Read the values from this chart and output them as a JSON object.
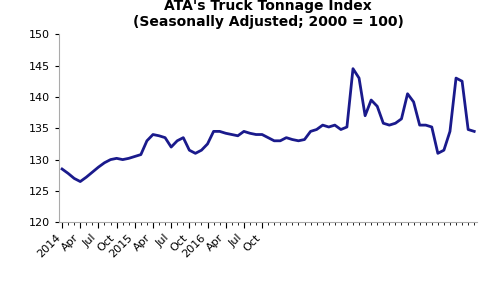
{
  "title": "ATA's Truck Tonnage Index\n(Seasonally Adjusted; 2000 = 100)",
  "line_color": "#1a1a8c",
  "line_width": 2.0,
  "background_color": "#ffffff",
  "ylim": [
    120,
    150
  ],
  "yticks": [
    120,
    125,
    130,
    135,
    140,
    145,
    150
  ],
  "tick_labels": [
    "2014",
    "Apr",
    "Jul",
    "Oct",
    "2015",
    "Apr",
    "Jul",
    "Oct",
    "2016",
    "Apr",
    "Jul",
    "Oct"
  ],
  "values": [
    128.5,
    127.8,
    127.0,
    126.5,
    127.2,
    128.0,
    128.8,
    129.5,
    130.0,
    130.2,
    130.0,
    130.2,
    130.5,
    130.8,
    133.0,
    134.0,
    133.8,
    133.5,
    132.0,
    133.0,
    133.5,
    131.5,
    131.0,
    131.5,
    132.5,
    134.5,
    134.5,
    134.2,
    134.0,
    133.8,
    134.5,
    134.2,
    134.0,
    134.0,
    133.5,
    133.0,
    133.0,
    133.5,
    133.2,
    133.0,
    133.2,
    134.5,
    134.8,
    135.5,
    135.2,
    135.5,
    134.8,
    135.2,
    144.5,
    143.0,
    137.0,
    139.5,
    138.5,
    135.8,
    135.5,
    135.8,
    136.5,
    140.5,
    139.2,
    135.5,
    135.5,
    135.2,
    131.0,
    131.5,
    134.5,
    143.0,
    142.5,
    134.8,
    134.5
  ],
  "n_months": 37
}
